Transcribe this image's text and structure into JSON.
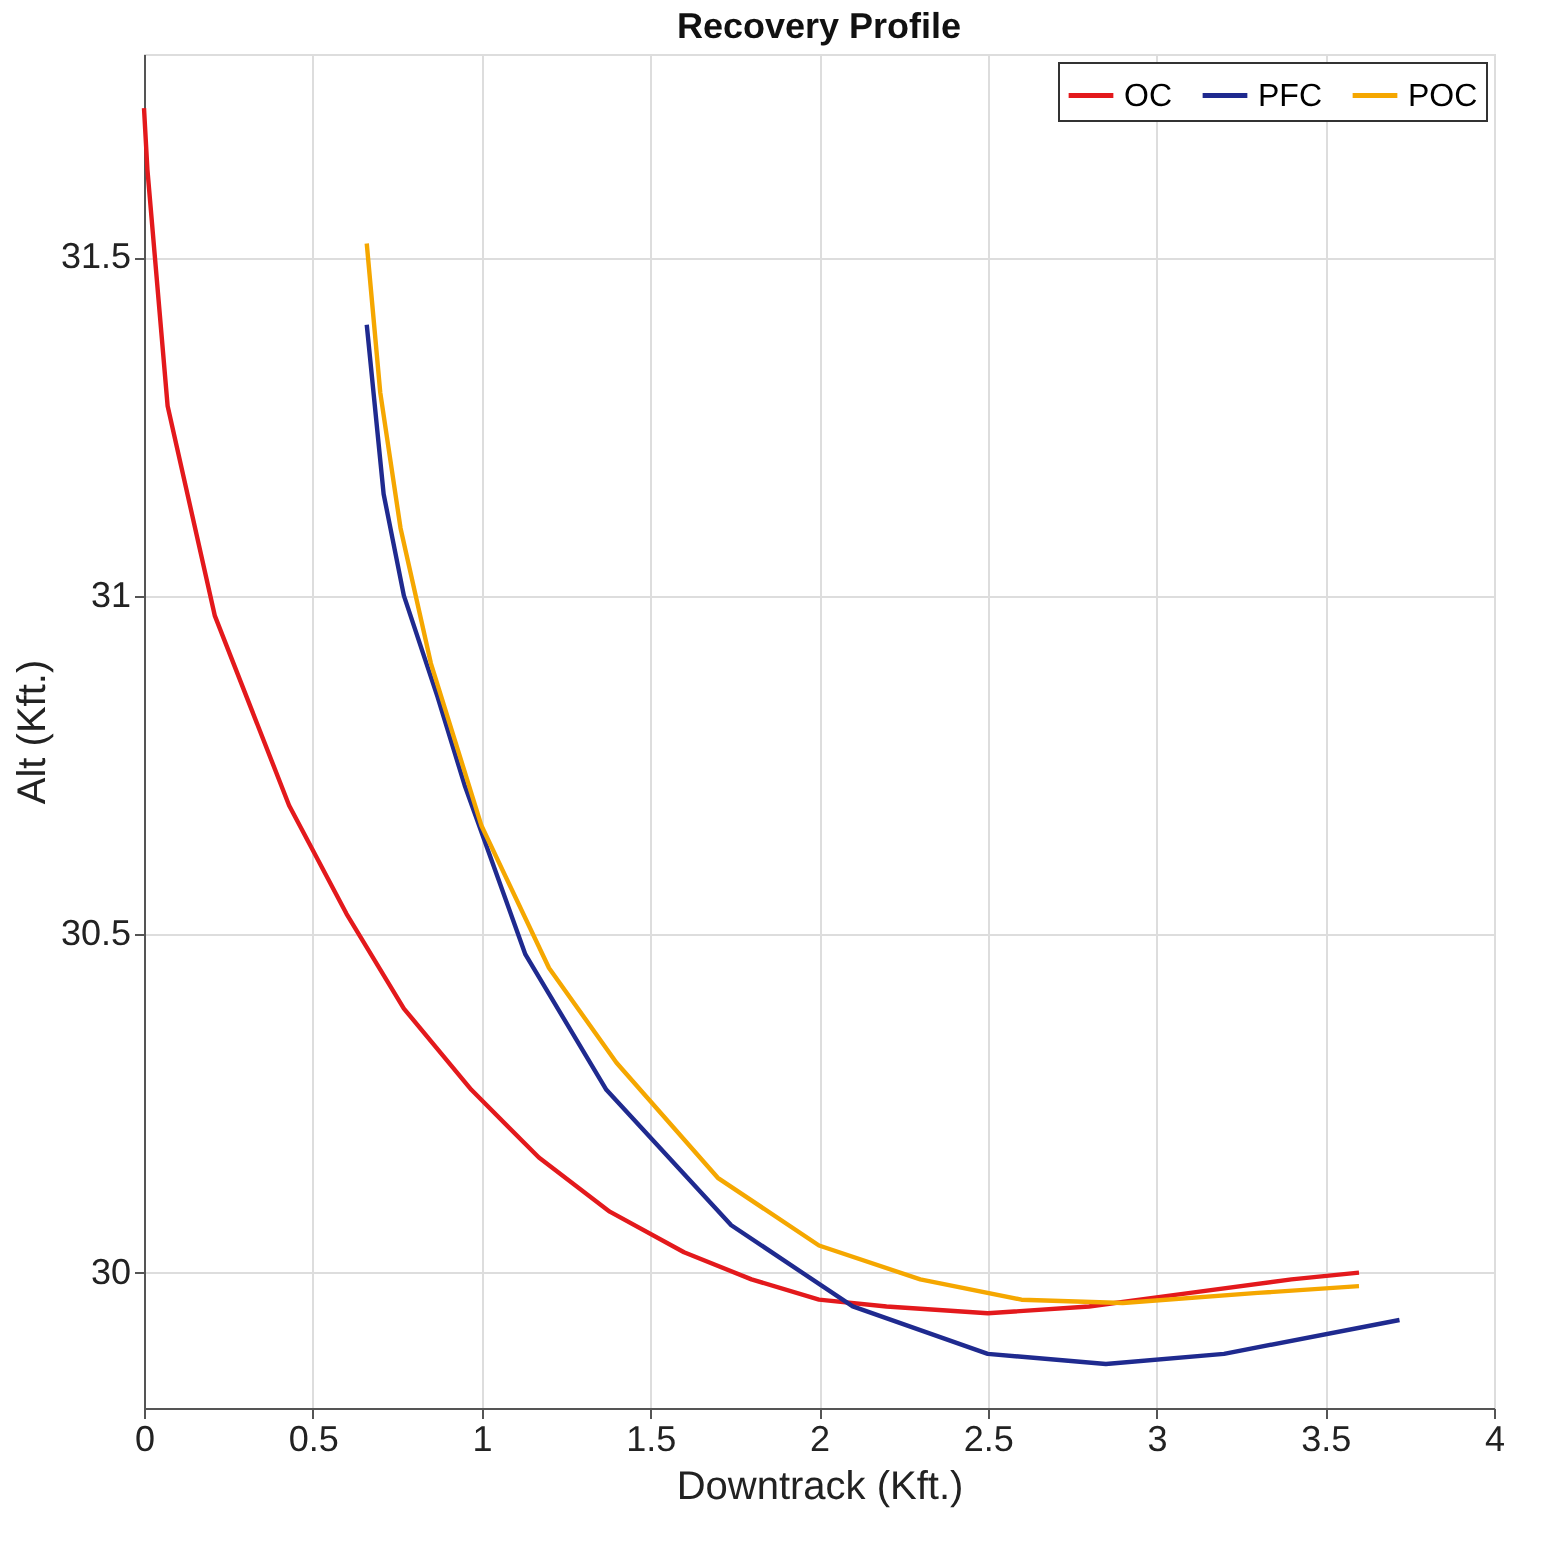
{
  "chart_data": {
    "type": "line",
    "title": "Recovery Profile",
    "xlabel": "Downtrack (Kft.)",
    "ylabel": "Alt (Kft.)",
    "xlim": [
      0,
      4
    ],
    "ylim": [
      29.8,
      31.8
    ],
    "xticks": [
      0,
      0.5,
      1,
      1.5,
      2,
      2.5,
      3,
      3.5,
      4
    ],
    "yticks": [
      30,
      30.5,
      31,
      31.5
    ],
    "grid": true,
    "legend": "top right",
    "line_style": "solid",
    "marker": "none",
    "series": [
      {
        "name": "OC",
        "color": "#e3191c",
        "x": [
          0,
          0.01,
          0.07,
          0.21,
          0.43,
          0.6,
          0.77,
          0.97,
          1.17,
          1.38,
          1.6,
          1.8,
          2.0,
          2.2,
          2.5,
          2.8,
          3.1,
          3.4,
          3.6
        ],
        "values": [
          31.72,
          31.63,
          31.28,
          30.97,
          30.69,
          30.53,
          30.39,
          30.27,
          30.17,
          30.09,
          30.03,
          29.99,
          29.96,
          29.95,
          29.94,
          29.95,
          29.97,
          29.99,
          30.0
        ]
      },
      {
        "name": "PFC",
        "color": "#1f2a8f",
        "x": [
          0.66,
          0.71,
          0.77,
          0.87,
          0.95,
          1.13,
          1.37,
          1.74,
          2.1,
          2.5,
          2.85,
          3.2,
          3.72
        ],
        "values": [
          31.4,
          31.15,
          31.0,
          30.85,
          30.72,
          30.47,
          30.27,
          30.07,
          29.95,
          29.88,
          29.865,
          29.88,
          29.93
        ]
      },
      {
        "name": "POC",
        "color": "#f5a700",
        "x": [
          0.66,
          0.7,
          0.76,
          0.85,
          1.0,
          1.2,
          1.4,
          1.7,
          2.0,
          2.3,
          2.6,
          2.9,
          3.3,
          3.6
        ],
        "values": [
          31.52,
          31.3,
          31.1,
          30.9,
          30.66,
          30.45,
          30.31,
          30.14,
          30.04,
          29.99,
          29.96,
          29.955,
          29.97,
          29.98
        ]
      }
    ]
  }
}
